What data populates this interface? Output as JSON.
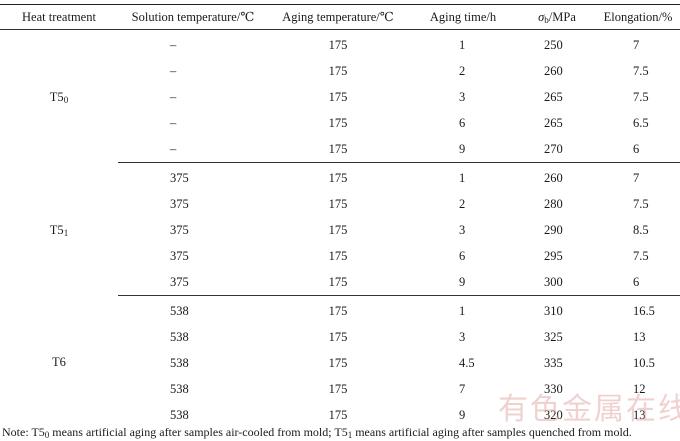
{
  "headers": {
    "heat_treatment": "Heat treatment",
    "solution_temp": "Solution temperature/℃",
    "aging_temp": "Aging temperature/℃",
    "aging_time": "Aging time/h",
    "sigma_symbol": "σ",
    "sigma_sub": "b",
    "sigma_unit": "/MPa",
    "elongation": "Elongation/%"
  },
  "groups": [
    {
      "label_base": "T5",
      "label_sub": "0",
      "rows": [
        {
          "solution": "–",
          "aging_temp": "175",
          "time": "1",
          "sigma": "250",
          "elong": "7"
        },
        {
          "solution": "–",
          "aging_temp": "175",
          "time": "2",
          "sigma": "260",
          "elong": "7.5"
        },
        {
          "solution": "–",
          "aging_temp": "175",
          "time": "3",
          "sigma": "265",
          "elong": "7.5"
        },
        {
          "solution": "–",
          "aging_temp": "175",
          "time": "6",
          "sigma": "265",
          "elong": "6.5"
        },
        {
          "solution": "–",
          "aging_temp": "175",
          "time": "9",
          "sigma": "270",
          "elong": "6"
        }
      ]
    },
    {
      "label_base": "T5",
      "label_sub": "1",
      "rows": [
        {
          "solution": "375",
          "aging_temp": "175",
          "time": "1",
          "sigma": "260",
          "elong": "7"
        },
        {
          "solution": "375",
          "aging_temp": "175",
          "time": "2",
          "sigma": "280",
          "elong": "7.5"
        },
        {
          "solution": "375",
          "aging_temp": "175",
          "time": "3",
          "sigma": "290",
          "elong": "8.5"
        },
        {
          "solution": "375",
          "aging_temp": "175",
          "time": "6",
          "sigma": "295",
          "elong": "7.5"
        },
        {
          "solution": "375",
          "aging_temp": "175",
          "time": "9",
          "sigma": "300",
          "elong": "6"
        }
      ]
    },
    {
      "label_base": "T6",
      "label_sub": "",
      "rows": [
        {
          "solution": "538",
          "aging_temp": "175",
          "time": "1",
          "sigma": "310",
          "elong": "16.5"
        },
        {
          "solution": "538",
          "aging_temp": "175",
          "time": "3",
          "sigma": "325",
          "elong": "13"
        },
        {
          "solution": "538",
          "aging_temp": "175",
          "time": "4.5",
          "sigma": "335",
          "elong": "10.5"
        },
        {
          "solution": "538",
          "aging_temp": "175",
          "time": "7",
          "sigma": "330",
          "elong": "12"
        },
        {
          "solution": "538",
          "aging_temp": "175",
          "time": "9",
          "sigma": "320",
          "elong": "13"
        }
      ]
    }
  ],
  "note": {
    "prefix": "Note: T5",
    "sub0": "0",
    "middle": " means artificial aging after samples air-cooled from mold; T5",
    "sub1": "1",
    "suffix": " means artificial aging after samples quenched from mold."
  },
  "watermark": "有色金属在线"
}
